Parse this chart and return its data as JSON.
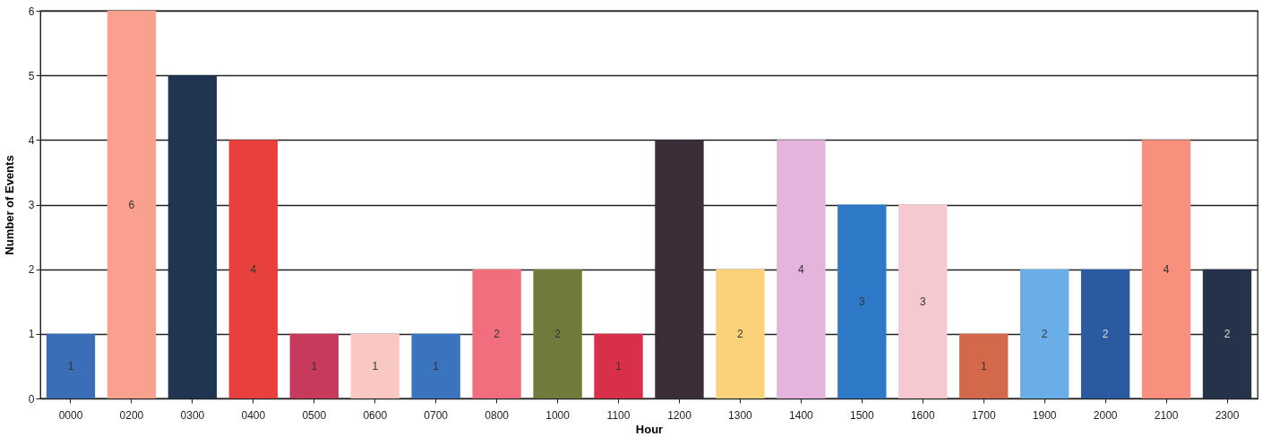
{
  "chart_data": {
    "type": "bar",
    "xlabel": "Hour",
    "ylabel": "Number of Events",
    "categories": [
      "0000",
      "0200",
      "0300",
      "0400",
      "0500",
      "0600",
      "0700",
      "0800",
      "1000",
      "1100",
      "1200",
      "1300",
      "1400",
      "1500",
      "1600",
      "1700",
      "1900",
      "2000",
      "2100",
      "2300"
    ],
    "values": [
      1,
      6,
      5,
      4,
      1,
      1,
      1,
      2,
      2,
      1,
      4,
      2,
      4,
      3,
      3,
      1,
      2,
      2,
      4,
      2
    ],
    "colors": [
      "#3a6fb8",
      "#f9a08e",
      "#1f3550",
      "#e8413d",
      "#c83a5c",
      "#f9c8c2",
      "#3a74be",
      "#f06e7e",
      "#707a3a",
      "#d8304a",
      "#3b2e38",
      "#fbd27a",
      "#e4b4dc",
      "#2f7ac8",
      "#f6c8d0",
      "#d4684a",
      "#6aaee8",
      "#2c5aa0",
      "#f9907e",
      "#24324a"
    ],
    "value_labels": [
      "1",
      "6",
      null,
      "4",
      "1",
      "1",
      "1",
      "2",
      "2",
      "1",
      null,
      "2",
      "4",
      "3",
      "3",
      "1",
      "2",
      "2",
      "4",
      "2"
    ],
    "ylim": [
      0,
      6
    ],
    "yticks": [
      0,
      1,
      2,
      3,
      4,
      5,
      6
    ],
    "grid": "y"
  }
}
